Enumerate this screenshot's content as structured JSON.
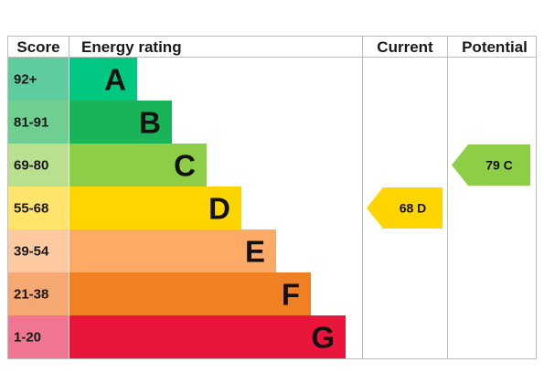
{
  "headers": {
    "score": "Score",
    "rating": "Energy rating",
    "current": "Current",
    "potential": "Potential"
  },
  "chart_data": {
    "type": "bar",
    "bands": [
      {
        "letter": "A",
        "range": "92+",
        "color": "#00c781",
        "score_bg": "#5fcca0"
      },
      {
        "letter": "B",
        "range": "81-91",
        "color": "#19b459",
        "score_bg": "#6fcf91"
      },
      {
        "letter": "C",
        "range": "69-80",
        "color": "#8dce46",
        "score_bg": "#b8e08f"
      },
      {
        "letter": "D",
        "range": "55-68",
        "color": "#ffd500",
        "score_bg": "#ffe36b"
      },
      {
        "letter": "E",
        "range": "39-54",
        "color": "#fcaa65",
        "score_bg": "#fdc9a0"
      },
      {
        "letter": "F",
        "range": "21-38",
        "color": "#ef8023",
        "score_bg": "#f5a872"
      },
      {
        "letter": "G",
        "range": "1-20",
        "color": "#e9153b",
        "score_bg": "#f07590"
      }
    ],
    "current": {
      "value": 68,
      "letter": "D",
      "label": "68  D",
      "color": "#ffd500"
    },
    "potential": {
      "value": 79,
      "letter": "C",
      "label": "79  C",
      "color": "#8dce46"
    }
  }
}
